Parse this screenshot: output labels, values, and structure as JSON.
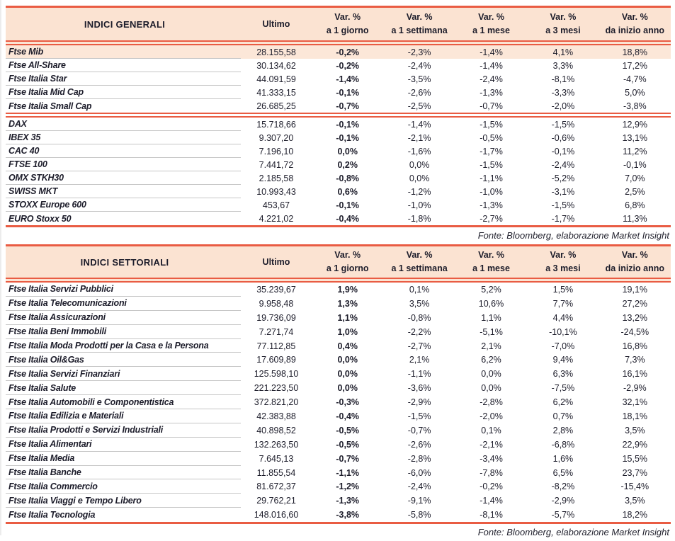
{
  "colors": {
    "accent_red": "#E95C43",
    "header_peach": "#FBE3D2",
    "highlight_row": "#FCE7D8",
    "text_ink": "#1C1C2A",
    "row_divider": "#C6C6C6"
  },
  "source_note": "Fonte: Bloomberg, elaborazione Market Insight",
  "tables": [
    {
      "title": "INDICI GENERALI",
      "ultimo_label": "Ultimo",
      "var_headers": [
        {
          "l1": "Var. %",
          "l2": "a 1 giorno"
        },
        {
          "l1": "Var. %",
          "l2": "a 1 settimana"
        },
        {
          "l1": "Var. %",
          "l2": "a 1 mese"
        },
        {
          "l1": "Var. %",
          "l2": "a 3 mesi"
        },
        {
          "l1": "Var. %",
          "l2": "da inizio anno"
        }
      ],
      "groups": [
        [
          {
            "name": "Ftse Mib",
            "ultimo": "28.155,58",
            "d1": "-0,2%",
            "w1": "-2,3%",
            "m1": "-1,4%",
            "m3": "4,1%",
            "ytd": "18,8%",
            "highlight": true
          },
          {
            "name": "Ftse All-Share",
            "ultimo": "30.134,62",
            "d1": "-0,2%",
            "w1": "-2,4%",
            "m1": "-1,4%",
            "m3": "3,3%",
            "ytd": "17,2%"
          },
          {
            "name": "Ftse Italia Star",
            "ultimo": "44.091,59",
            "d1": "-1,4%",
            "w1": "-3,5%",
            "m1": "-2,4%",
            "m3": "-8,1%",
            "ytd": "-4,7%"
          },
          {
            "name": "Ftse Italia Mid Cap",
            "ultimo": "41.333,15",
            "d1": "-0,1%",
            "w1": "-2,6%",
            "m1": "-1,3%",
            "m3": "-3,3%",
            "ytd": "5,0%"
          },
          {
            "name": "Ftse Italia Small Cap",
            "ultimo": "26.685,25",
            "d1": "-0,7%",
            "w1": "-2,5%",
            "m1": "-0,7%",
            "m3": "-2,0%",
            "ytd": "-3,8%"
          }
        ],
        [
          {
            "name": "DAX",
            "ultimo": "15.718,66",
            "d1": "-0,1%",
            "w1": "-1,4%",
            "m1": "-1,5%",
            "m3": "-1,5%",
            "ytd": "12,9%"
          },
          {
            "name": "IBEX 35",
            "ultimo": "9.307,20",
            "d1": "-0,1%",
            "w1": "-2,1%",
            "m1": "-0,5%",
            "m3": "-0,6%",
            "ytd": "13,1%"
          },
          {
            "name": "CAC 40",
            "ultimo": "7.196,10",
            "d1": "0,0%",
            "w1": "-1,6%",
            "m1": "-1,7%",
            "m3": "-0,1%",
            "ytd": "11,2%"
          },
          {
            "name": "FTSE 100",
            "ultimo": "7.441,72",
            "d1": "0,2%",
            "w1": "0,0%",
            "m1": "-1,5%",
            "m3": "-2,4%",
            "ytd": "-0,1%"
          },
          {
            "name": "OMX STKH30",
            "ultimo": "2.185,58",
            "d1": "-0,8%",
            "w1": "0,0%",
            "m1": "-1,1%",
            "m3": "-5,2%",
            "ytd": "7,0%"
          },
          {
            "name": "SWISS MKT",
            "ultimo": "10.993,43",
            "d1": "0,6%",
            "w1": "-1,2%",
            "m1": "-1,0%",
            "m3": "-3,1%",
            "ytd": "2,5%"
          },
          {
            "name": "STOXX Europe 600",
            "ultimo": "453,67",
            "d1": "-0,1%",
            "w1": "-1,0%",
            "m1": "-1,3%",
            "m3": "-1,5%",
            "ytd": "6,8%"
          },
          {
            "name": "EURO Stoxx 50",
            "ultimo": "4.221,02",
            "d1": "-0,4%",
            "w1": "-1,8%",
            "m1": "-2,7%",
            "m3": "-1,7%",
            "ytd": "11,3%"
          }
        ]
      ]
    },
    {
      "title": "INDICI SETTORIALI",
      "ultimo_label": "Ultimo",
      "var_headers": [
        {
          "l1": "Var. %",
          "l2": "a 1 giorno"
        },
        {
          "l1": "Var. %",
          "l2": "a 1 settimana"
        },
        {
          "l1": "Var. %",
          "l2": "a 1 mese"
        },
        {
          "l1": "Var. %",
          "l2": "a 3 mesi"
        },
        {
          "l1": "Var. %",
          "l2": "da inizio anno"
        }
      ],
      "groups": [
        [
          {
            "name": "Ftse Italia Servizi Pubblici",
            "ultimo": "35.239,67",
            "d1": "1,9%",
            "w1": "0,1%",
            "m1": "5,2%",
            "m3": "1,5%",
            "ytd": "19,1%"
          },
          {
            "name": "Ftse Italia Telecomunicazioni",
            "ultimo": "9.958,48",
            "d1": "1,3%",
            "w1": "3,5%",
            "m1": "10,6%",
            "m3": "7,7%",
            "ytd": "27,2%"
          },
          {
            "name": "Ftse Italia Assicurazioni",
            "ultimo": "19.736,09",
            "d1": "1,1%",
            "w1": "-0,8%",
            "m1": "1,1%",
            "m3": "4,4%",
            "ytd": "13,2%"
          },
          {
            "name": "Ftse Italia Beni Immobili",
            "ultimo": "7.271,74",
            "d1": "1,0%",
            "w1": "-2,2%",
            "m1": "-5,1%",
            "m3": "-10,1%",
            "ytd": "-24,5%"
          },
          {
            "name": "Ftse Italia Moda Prodotti per la Casa e la Persona",
            "ultimo": "77.112,85",
            "d1": "0,4%",
            "w1": "-2,7%",
            "m1": "2,1%",
            "m3": "-7,0%",
            "ytd": "16,8%"
          },
          {
            "name": "Ftse Italia Oil&Gas",
            "ultimo": "17.609,89",
            "d1": "0,0%",
            "w1": "2,1%",
            "m1": "6,2%",
            "m3": "9,4%",
            "ytd": "7,3%"
          },
          {
            "name": "Ftse Italia Servizi Finanziari",
            "ultimo": "125.598,10",
            "d1": "0,0%",
            "w1": "-1,1%",
            "m1": "0,0%",
            "m3": "6,3%",
            "ytd": "16,1%"
          },
          {
            "name": "Ftse Italia Salute",
            "ultimo": "221.223,50",
            "d1": "0,0%",
            "w1": "-3,6%",
            "m1": "0,0%",
            "m3": "-7,5%",
            "ytd": "-2,9%"
          },
          {
            "name": "Ftse Italia Automobili e Componentistica",
            "ultimo": "372.821,20",
            "d1": "-0,3%",
            "w1": "-2,9%",
            "m1": "-2,8%",
            "m3": "6,2%",
            "ytd": "32,1%"
          },
          {
            "name": "Ftse Italia Edilizia e Materiali",
            "ultimo": "42.383,88",
            "d1": "-0,4%",
            "w1": "-1,5%",
            "m1": "-2,0%",
            "m3": "0,7%",
            "ytd": "18,1%"
          },
          {
            "name": "Ftse Italia Prodotti e Servizi Industriali",
            "ultimo": "40.898,52",
            "d1": "-0,5%",
            "w1": "-0,7%",
            "m1": "0,1%",
            "m3": "2,8%",
            "ytd": "3,5%"
          },
          {
            "name": "Ftse Italia Alimentari",
            "ultimo": "132.263,50",
            "d1": "-0,5%",
            "w1": "-2,6%",
            "m1": "-2,1%",
            "m3": "-6,8%",
            "ytd": "22,9%"
          },
          {
            "name": "Ftse Italia Media",
            "ultimo": "7.645,13",
            "d1": "-0,7%",
            "w1": "-2,8%",
            "m1": "-3,4%",
            "m3": "1,6%",
            "ytd": "15,5%"
          },
          {
            "name": "Ftse Italia Banche",
            "ultimo": "11.855,54",
            "d1": "-1,1%",
            "w1": "-6,0%",
            "m1": "-7,8%",
            "m3": "6,5%",
            "ytd": "23,7%"
          },
          {
            "name": "Ftse Italia Commercio",
            "ultimo": "81.672,37",
            "d1": "-1,2%",
            "w1": "-2,4%",
            "m1": "-0,2%",
            "m3": "-8,2%",
            "ytd": "-15,4%"
          },
          {
            "name": "Ftse Italia Viaggi e Tempo Libero",
            "ultimo": "29.762,21",
            "d1": "-1,3%",
            "w1": "-9,1%",
            "m1": "-1,4%",
            "m3": "-2,9%",
            "ytd": "3,5%"
          },
          {
            "name": "Ftse Italia Tecnologia",
            "ultimo": "148.016,60",
            "d1": "-3,8%",
            "w1": "-5,8%",
            "m1": "-8,1%",
            "m3": "-5,7%",
            "ytd": "18,2%"
          }
        ]
      ]
    }
  ]
}
